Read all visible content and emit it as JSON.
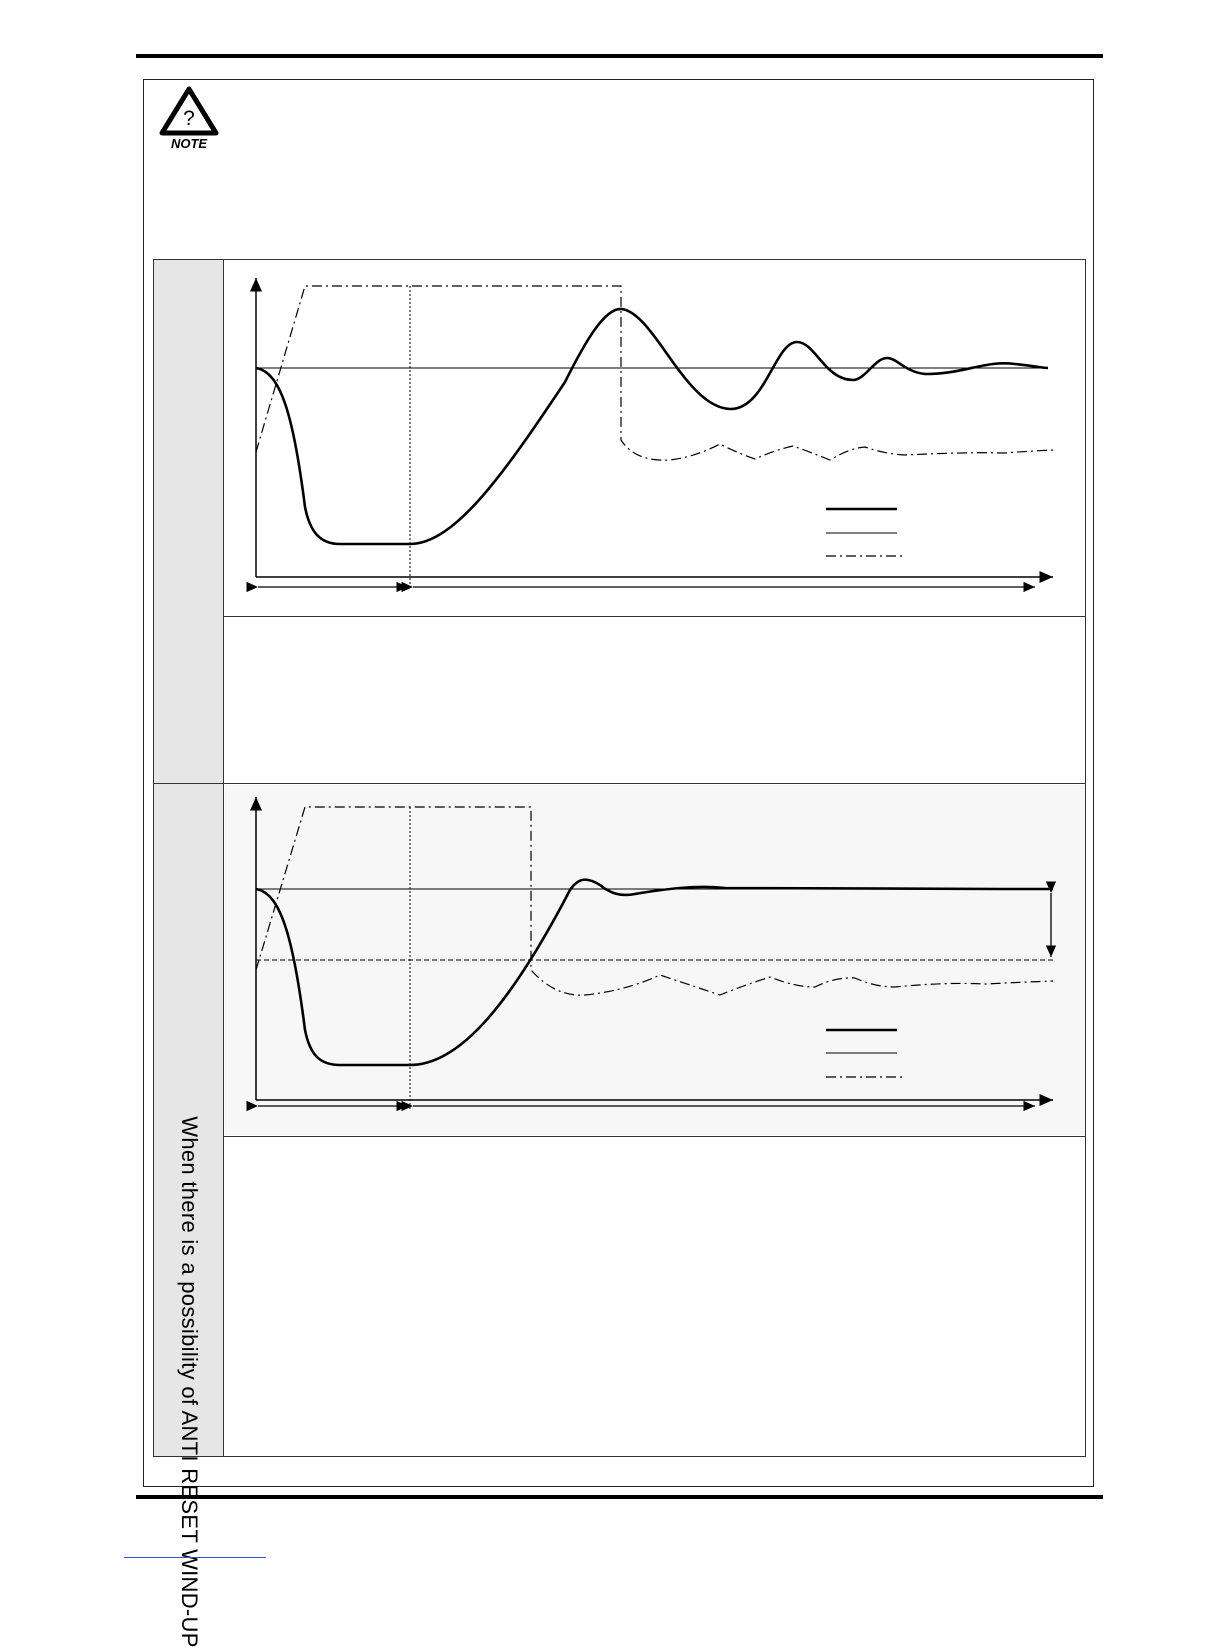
{
  "note_icon": {
    "label": "NOTE",
    "glyph": "?"
  },
  "side_labels": {
    "first": "",
    "second": "When there is a possibility of ANTI RESET WIND-UP"
  },
  "colors": {
    "line": "#000000",
    "cell_fill": "#e6e6e6"
  }
}
